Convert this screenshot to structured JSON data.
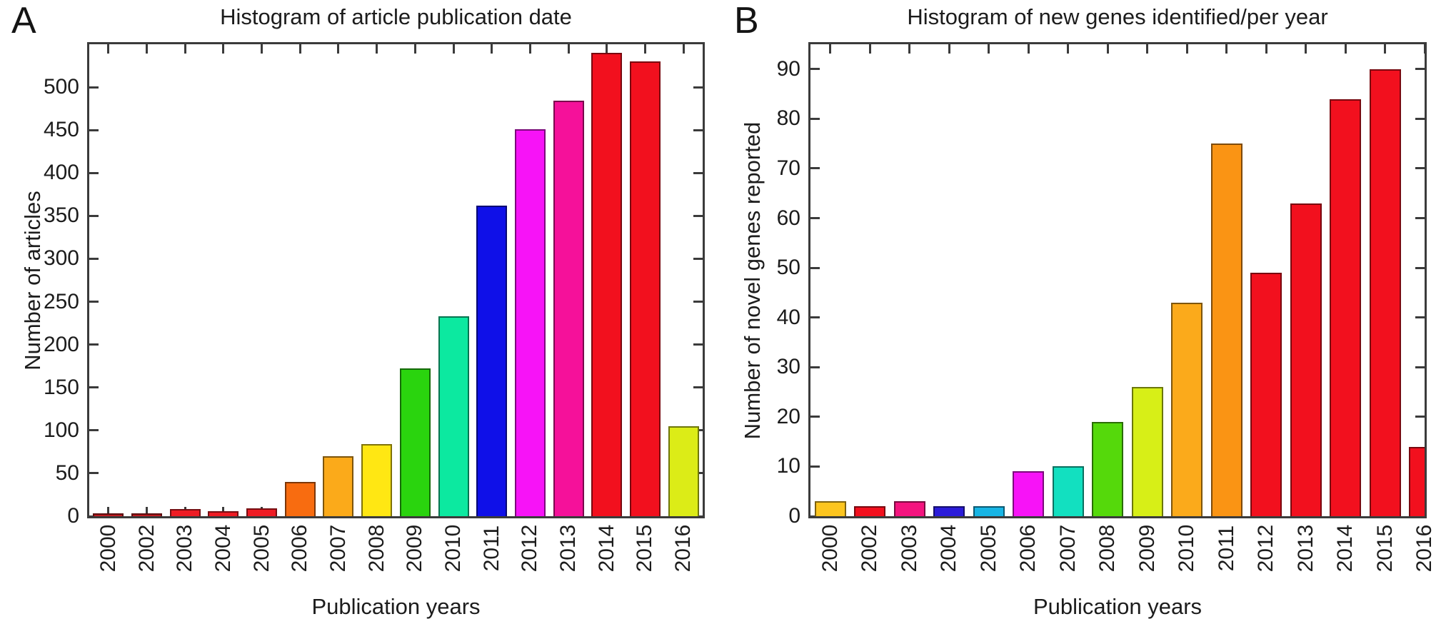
{
  "figure": {
    "background": "#ffffff",
    "axis_color": "#3b3b3b",
    "text_color": "#1c1c1c",
    "panels": [
      {
        "letter": "A"
      },
      {
        "letter": "B"
      }
    ]
  },
  "chart_data": [
    {
      "type": "bar",
      "panel": "A",
      "title": "Histogram of article publication date",
      "xlabel": "Publication years",
      "ylabel": "Number of articles",
      "categories": [
        "2000",
        "2002",
        "2003",
        "2004",
        "2005",
        "2006",
        "2007",
        "2008",
        "2009",
        "2010",
        "2011",
        "2012",
        "2013",
        "2014",
        "2015",
        "2016"
      ],
      "values": [
        3,
        3,
        8,
        6,
        9,
        40,
        70,
        84,
        172,
        233,
        362,
        451,
        484,
        540,
        530,
        105
      ],
      "bar_colors": [
        "#bb1a1f",
        "#bb1a1f",
        "#ee1c24",
        "#ee1c24",
        "#ee1c24",
        "#f86c10",
        "#fbaa1a",
        "#ffe713",
        "#2ad40e",
        "#0ce9a0",
        "#0f10e8",
        "#f713f7",
        "#f5119a",
        "#f2101e",
        "#f2101e",
        "#dcec17"
      ],
      "ylim": [
        0,
        550
      ],
      "yticks": [
        0,
        50,
        100,
        150,
        200,
        250,
        300,
        350,
        400,
        450,
        500
      ],
      "grid": false,
      "legend": false,
      "box_ticks": "inward-all-four-edges",
      "x_tick_label_rotation_deg": 90,
      "last_bar_clipped": false
    },
    {
      "type": "bar",
      "panel": "B",
      "title": "Histogram of new genes identified/per year",
      "xlabel": "Publication years",
      "ylabel": "Number of novel genes reported",
      "categories": [
        "2000",
        "2002",
        "2003",
        "2004",
        "2005",
        "2006",
        "2007",
        "2008",
        "2009",
        "2010",
        "2011",
        "2012",
        "2013",
        "2014",
        "2015",
        "2016"
      ],
      "values": [
        3,
        2,
        3,
        2,
        2,
        9,
        10,
        19,
        26,
        43,
        75,
        49,
        63,
        84,
        90,
        14
      ],
      "bar_colors": [
        "#fcc51f",
        "#f2101e",
        "#f4147f",
        "#2b1cd9",
        "#18b5e5",
        "#f713f7",
        "#12e0c0",
        "#55d90b",
        "#d7ef17",
        "#fbaa1b",
        "#fa9414",
        "#f2101e",
        "#f2101e",
        "#f2101e",
        "#f2101e",
        "#f2101e"
      ],
      "ylim": [
        0,
        95
      ],
      "yticks": [
        0,
        10,
        20,
        30,
        40,
        50,
        60,
        70,
        80,
        90
      ],
      "grid": false,
      "legend": false,
      "box_ticks": "inward-all-four-edges",
      "x_tick_label_rotation_deg": 90,
      "last_bar_clipped": true
    }
  ]
}
